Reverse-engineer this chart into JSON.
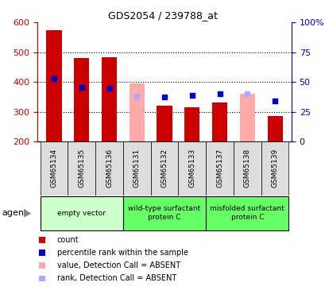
{
  "title": "GDS2054 / 239788_at",
  "samples": [
    "GSM65134",
    "GSM65135",
    "GSM65136",
    "GSM65131",
    "GSM65132",
    "GSM65133",
    "GSM65137",
    "GSM65138",
    "GSM65139"
  ],
  "groups": [
    {
      "label": "empty vector",
      "color": "#ccffcc",
      "samples": [
        0,
        1,
        2
      ]
    },
    {
      "label": "wild-type surfactant\nprotein C",
      "color": "#66ff66",
      "samples": [
        3,
        4,
        5
      ]
    },
    {
      "label": "misfolded surfactant\nprotein C",
      "color": "#66ff66",
      "samples": [
        6,
        7,
        8
      ]
    }
  ],
  "count_values": [
    575,
    480,
    482,
    null,
    320,
    315,
    330,
    null,
    285
  ],
  "count_color": "#cc0000",
  "absent_value_values": [
    null,
    null,
    null,
    395,
    null,
    null,
    null,
    360,
    null
  ],
  "absent_value_color": "#ffaaaa",
  "percentile_values": [
    410,
    382,
    380,
    null,
    350,
    355,
    360,
    null,
    337
  ],
  "percentile_color": "#0000cc",
  "absent_rank_values": [
    null,
    null,
    null,
    353,
    null,
    null,
    null,
    360,
    null
  ],
  "absent_rank_color": "#aaaaff",
  "bar_width": 0.55,
  "ylim_left": [
    200,
    600
  ],
  "ylim_right": [
    0,
    100
  ],
  "yticks_left": [
    200,
    300,
    400,
    500,
    600
  ],
  "yticks_right": [
    0,
    25,
    50,
    75,
    100
  ],
  "ytick_labels_right": [
    "0",
    "25",
    "50",
    "75",
    "100%"
  ],
  "grid_ticks": [
    300,
    400,
    500
  ],
  "left_axis_color": "#cc0000",
  "right_axis_color": "#0000cc",
  "agent_label": "agent",
  "sample_bg_color": "#dddddd",
  "legend_items": [
    {
      "label": "count",
      "color": "#cc0000"
    },
    {
      "label": "percentile rank within the sample",
      "color": "#0000cc"
    },
    {
      "label": "value, Detection Call = ABSENT",
      "color": "#ffaaaa"
    },
    {
      "label": "rank, Detection Call = ABSENT",
      "color": "#aaaaff"
    }
  ]
}
